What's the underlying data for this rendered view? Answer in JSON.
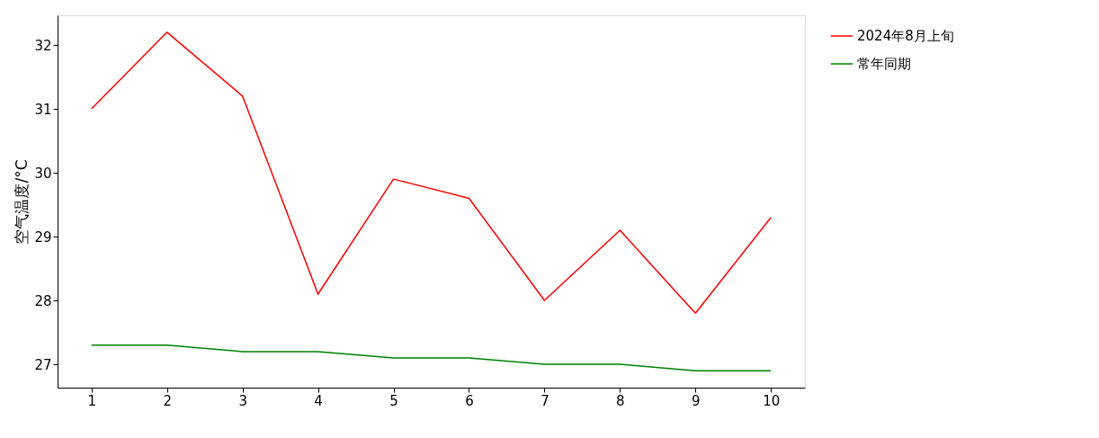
{
  "chart_data": {
    "type": "line",
    "ylabel": "空气温度/°C",
    "x": [
      1,
      2,
      3,
      4,
      5,
      6,
      7,
      8,
      9,
      10
    ],
    "series": [
      {
        "name": "2024年8月上旬",
        "color": "#ff0000",
        "values": [
          31.0,
          32.2,
          31.2,
          28.1,
          29.9,
          29.6,
          28.0,
          29.1,
          27.8,
          29.3
        ]
      },
      {
        "name": "常年同期",
        "color": "#008000",
        "values": [
          27.3,
          27.3,
          27.2,
          27.2,
          27.1,
          27.1,
          27.0,
          27.0,
          26.9,
          26.9
        ]
      }
    ],
    "xlim": [
      0.55,
      10.45
    ],
    "ylim": [
      26.635,
      32.465
    ],
    "xticks": [
      1,
      2,
      3,
      4,
      5,
      6,
      7,
      8,
      9,
      10
    ],
    "yticks": [
      27,
      28,
      29,
      30,
      31,
      32
    ],
    "grid": false,
    "legend": "right",
    "marker": "none",
    "line_style": "solid"
  }
}
